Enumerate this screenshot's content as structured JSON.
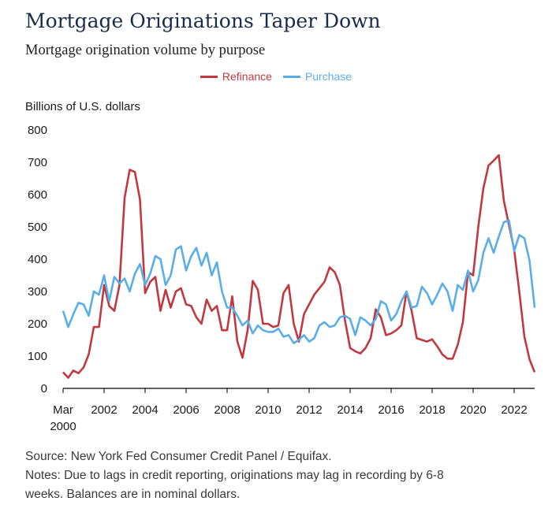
{
  "title": "Mortgage Originations Taper Down",
  "subtitle": "Mortgage origination volume by purpose",
  "legend": {
    "refinance": "Refinance",
    "purchase": "Purchase"
  },
  "ylabel_text": "Billions of U.S. dollars",
  "source": "Source: New York Fed Consumer Credit Panel / Equifax.",
  "notes_line1": "Notes: Due to lags in credit reporting, originations may lag in recording by 6-8",
  "notes_line2": "weeks. Balances are in nominal dollars.",
  "colors": {
    "refinance": "#c0393f",
    "purchase": "#5aaee8",
    "axis": "#000000",
    "title": "#1b2c4a"
  },
  "chart_data": {
    "type": "line",
    "title": "Mortgage Originations Taper Down",
    "subtitle": "Mortgage origination volume by purpose",
    "ylabel": "Billions of U.S. dollars",
    "ylim": [
      0,
      800
    ],
    "yticks": [
      0,
      100,
      200,
      300,
      400,
      500,
      600,
      700,
      800
    ],
    "xlim": [
      2000.0,
      2023.0
    ],
    "xticks": [
      {
        "x": 2000,
        "label": "Mar",
        "label2": "2000"
      },
      {
        "x": 2002,
        "label": "2002"
      },
      {
        "x": 2004,
        "label": "2004"
      },
      {
        "x": 2006,
        "label": "2006"
      },
      {
        "x": 2008,
        "label": "2008"
      },
      {
        "x": 2010,
        "label": "2010"
      },
      {
        "x": 2012,
        "label": "2012"
      },
      {
        "x": 2014,
        "label": "2014"
      },
      {
        "x": 2016,
        "label": "2016"
      },
      {
        "x": 2018,
        "label": "2018"
      },
      {
        "x": 2020,
        "label": "2020"
      },
      {
        "x": 2022,
        "label": "2022"
      }
    ],
    "grid": false,
    "legend_position": "top-center",
    "x": [
      2000.0,
      2000.25,
      2000.5,
      2000.75,
      2001.0,
      2001.25,
      2001.5,
      2001.75,
      2002.0,
      2002.25,
      2002.5,
      2002.75,
      2003.0,
      2003.25,
      2003.5,
      2003.75,
      2004.0,
      2004.25,
      2004.5,
      2004.75,
      2005.0,
      2005.25,
      2005.5,
      2005.75,
      2006.0,
      2006.25,
      2006.5,
      2006.75,
      2007.0,
      2007.25,
      2007.5,
      2007.75,
      2008.0,
      2008.25,
      2008.5,
      2008.75,
      2009.0,
      2009.25,
      2009.5,
      2009.75,
      2010.0,
      2010.25,
      2010.5,
      2010.75,
      2011.0,
      2011.25,
      2011.5,
      2011.75,
      2012.0,
      2012.25,
      2012.5,
      2012.75,
      2013.0,
      2013.25,
      2013.5,
      2013.75,
      2014.0,
      2014.25,
      2014.5,
      2014.75,
      2015.0,
      2015.25,
      2015.5,
      2015.75,
      2016.0,
      2016.25,
      2016.5,
      2016.75,
      2017.0,
      2017.25,
      2017.5,
      2017.75,
      2018.0,
      2018.25,
      2018.5,
      2018.75,
      2019.0,
      2019.25,
      2019.5,
      2019.75,
      2020.0,
      2020.25,
      2020.5,
      2020.75,
      2021.0,
      2021.25,
      2021.5,
      2021.75,
      2022.0,
      2022.25,
      2022.5,
      2022.75,
      2023.0
    ],
    "series": [
      {
        "name": "Refinance",
        "color": "#c0393f",
        "values": [
          50,
          33,
          55,
          47,
          65,
          105,
          190,
          190,
          320,
          255,
          240,
          320,
          590,
          677,
          670,
          585,
          295,
          330,
          345,
          240,
          305,
          250,
          300,
          310,
          260,
          255,
          220,
          200,
          275,
          240,
          255,
          180,
          180,
          285,
          145,
          95,
          180,
          333,
          305,
          200,
          200,
          190,
          195,
          295,
          320,
          200,
          145,
          230,
          260,
          290,
          310,
          330,
          375,
          360,
          320,
          210,
          125,
          115,
          108,
          125,
          155,
          245,
          220,
          165,
          170,
          180,
          195,
          300,
          240,
          155,
          150,
          145,
          152,
          130,
          105,
          92,
          92,
          135,
          205,
          360,
          350,
          500,
          620,
          690,
          705,
          722,
          580,
          505,
          430,
          300,
          160,
          90,
          50
        ]
      },
      {
        "name": "Purchase",
        "color": "#5aaee8",
        "values": [
          240,
          190,
          230,
          265,
          260,
          225,
          300,
          290,
          350,
          270,
          345,
          325,
          340,
          300,
          355,
          385,
          320,
          355,
          410,
          400,
          320,
          350,
          430,
          440,
          365,
          410,
          435,
          380,
          420,
          350,
          390,
          300,
          250,
          250,
          225,
          195,
          210,
          170,
          195,
          180,
          175,
          175,
          185,
          160,
          165,
          140,
          150,
          165,
          145,
          155,
          195,
          205,
          190,
          195,
          220,
          225,
          215,
          165,
          220,
          210,
          195,
          215,
          270,
          260,
          210,
          230,
          270,
          300,
          250,
          255,
          315,
          295,
          260,
          290,
          325,
          300,
          240,
          320,
          305,
          365,
          300,
          335,
          420,
          465,
          420,
          470,
          515,
          520,
          425,
          475,
          465,
          395,
          250
        ]
      }
    ]
  }
}
